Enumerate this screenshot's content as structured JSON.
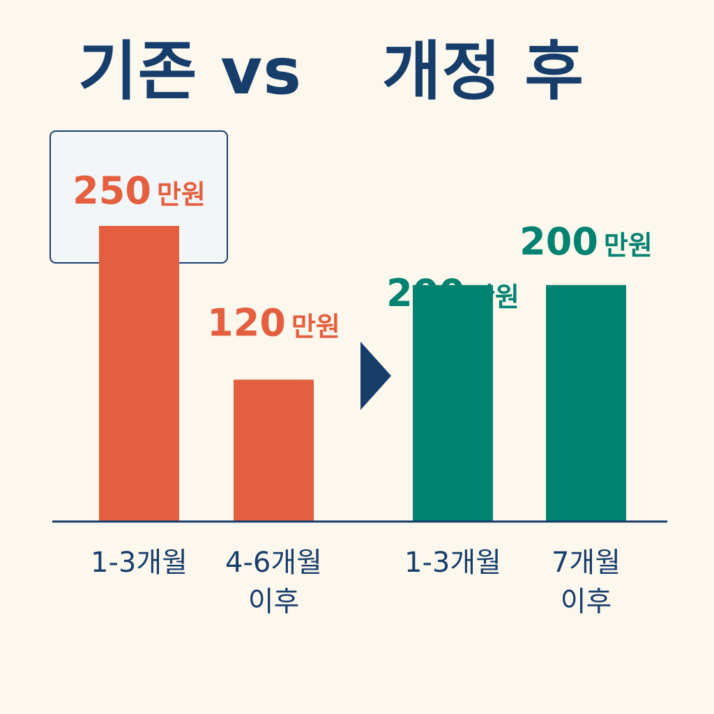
{
  "header": {
    "title_left": "기존 vs",
    "title_right": "개정 후"
  },
  "colors": {
    "background": "#fdf8ee",
    "navy": "#173d6b",
    "before": "#e45f3f",
    "after": "#028270",
    "highlight_box": "#f3f6f8"
  },
  "icons": {
    "arrow": "triangle-right-arrow-icon"
  },
  "chart_data": {
    "type": "bar",
    "title": "",
    "xlabel": "",
    "ylabel": "",
    "ylim": [
      0,
      300
    ],
    "groups": [
      {
        "name": "기존",
        "color": "#e45f3f",
        "bars": [
          {
            "category_lines": [
              "1-3개월"
            ],
            "value": 250,
            "number": "250",
            "unit": "만원",
            "highlighted": true
          },
          {
            "category_lines": [
              "4-6개월",
              "이후"
            ],
            "value": 120,
            "number": "120",
            "unit": "만원",
            "highlighted": false
          }
        ]
      },
      {
        "name": "개정 후",
        "color": "#028270",
        "bars": [
          {
            "category_lines": [
              "1-3개월"
            ],
            "value": 200,
            "number": "200",
            "unit": "만원",
            "highlighted": false
          },
          {
            "category_lines": [
              "7개월",
              "이후"
            ],
            "value": 200,
            "number": "200",
            "unit": "만원",
            "highlighted": false
          }
        ]
      }
    ]
  }
}
